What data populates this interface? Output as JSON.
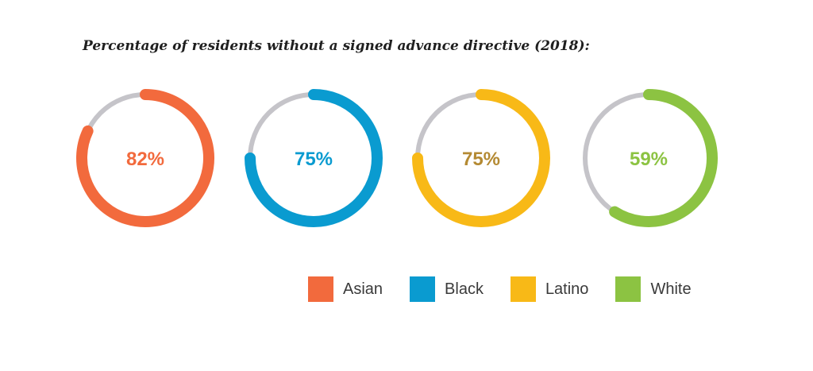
{
  "chart_data": {
    "type": "pie",
    "title": "Percentage of residents without a signed advance directive (2018):",
    "categories": [
      "Asian",
      "Black",
      "Latino",
      "White"
    ],
    "values": [
      82,
      75,
      75,
      59
    ],
    "labels": [
      "82%",
      "75%",
      "75%",
      "59%"
    ],
    "colors": [
      "#f26a3d",
      "#0a9bd0",
      "#f8b917",
      "#8cc342"
    ],
    "label_colors": [
      "#f26a3d",
      "#0a9bd0",
      "#b48a33",
      "#8cc342"
    ],
    "track_color": "#c5c4c9",
    "ylim": [
      0,
      100
    ],
    "legend": "bottom"
  }
}
